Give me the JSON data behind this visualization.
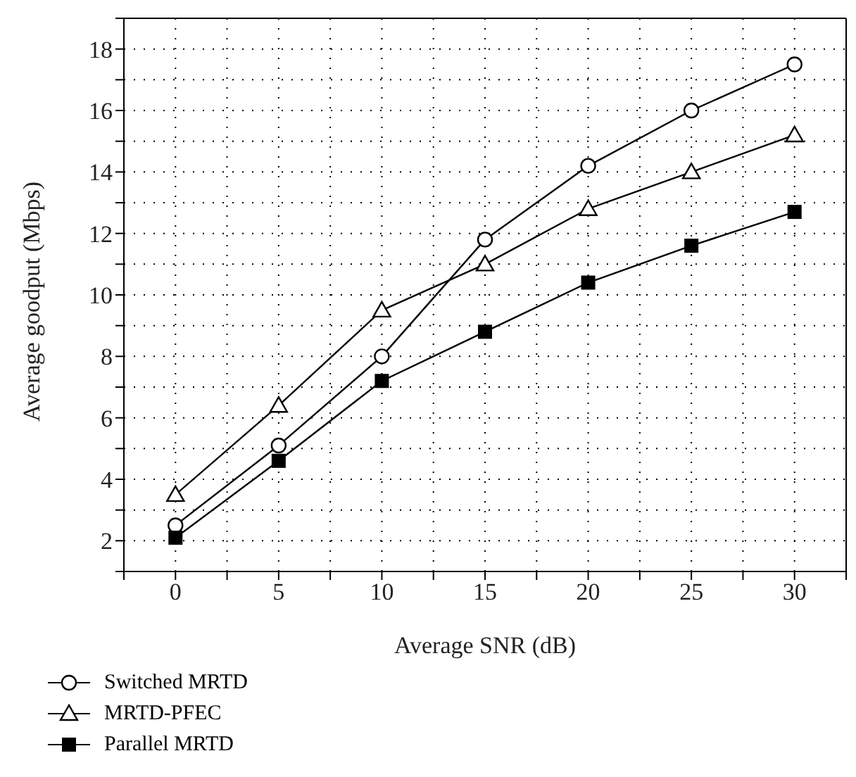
{
  "chart_data": {
    "type": "line",
    "xlabel": "Average SNR (dB)",
    "ylabel": "Average goodput (Mbps)",
    "x": [
      0,
      5,
      10,
      15,
      20,
      25,
      30
    ],
    "xlim": [
      -2.5,
      32.5
    ],
    "xticks": [
      {
        "value": -2.5,
        "label": null
      },
      0,
      {
        "value": 2.5,
        "label": null
      },
      5,
      {
        "value": 7.5,
        "label": null
      },
      10,
      {
        "value": 12.5,
        "label": null
      },
      15,
      {
        "value": 17.5,
        "label": null
      },
      20,
      {
        "value": 22.5,
        "label": null
      },
      25,
      {
        "value": 27.5,
        "label": null
      },
      30,
      {
        "value": 32.5,
        "label": null
      }
    ],
    "ylim": [
      1,
      19
    ],
    "yticks": [
      {
        "value": 1,
        "label": null
      },
      2,
      {
        "value": 3,
        "label": null
      },
      4,
      {
        "value": 5,
        "label": null
      },
      6,
      {
        "value": 7,
        "label": null
      },
      8,
      {
        "value": 9,
        "label": null
      },
      10,
      {
        "value": 11,
        "label": null
      },
      12,
      {
        "value": 13,
        "label": null
      },
      14,
      {
        "value": 15,
        "label": null
      },
      16,
      {
        "value": 17,
        "label": null
      },
      18,
      {
        "value": 19,
        "label": null
      }
    ],
    "grid": true,
    "legend": "bottom",
    "line_style": "solid",
    "series": [
      {
        "name": "Switched MRTD",
        "color": "#000000",
        "marker": "circle",
        "values": [
          2.5,
          5.1,
          8.0,
          11.8,
          14.2,
          16.0,
          17.5
        ]
      },
      {
        "name": "MRTD-PFEC",
        "color": "#000000",
        "marker": "triangle",
        "values": [
          3.5,
          6.4,
          9.5,
          11.0,
          12.8,
          14.0,
          15.2
        ]
      },
      {
        "name": "Parallel MRTD",
        "color": "#000000",
        "marker": "square",
        "values": [
          2.1,
          4.6,
          7.2,
          8.8,
          10.4,
          11.6,
          12.7
        ]
      }
    ]
  }
}
